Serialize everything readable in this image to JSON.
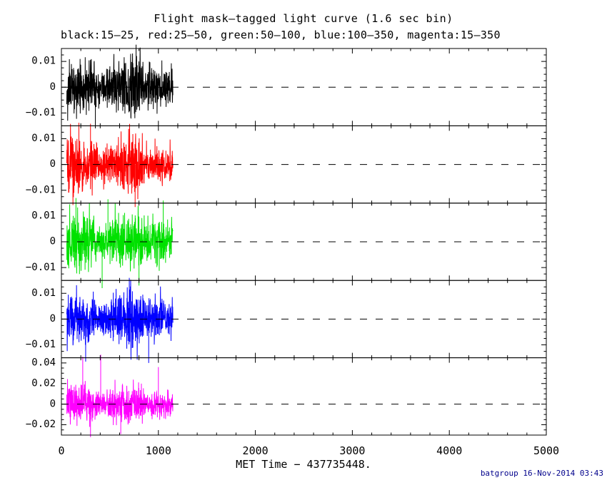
{
  "chart_data": {
    "type": "line",
    "title": "Flight mask–tagged light curve (1.6 sec bin)",
    "subtitle": "black:15–25, red:25–50, green:50–100, blue:100–350, magenta:15–350",
    "xlabel": "MET Time − 437735448.",
    "credit": "batgroup 16-Nov-2014 03:43",
    "credit_color": "#00008b",
    "axis_color": "#000000",
    "background_color": "#ffffff",
    "grid": false,
    "legend_position": "subtitle",
    "zero_line_style": "dashed",
    "xlim": [
      0,
      5000
    ],
    "xticks": [
      0,
      1000,
      2000,
      3000,
      4000,
      5000
    ],
    "xtick_labels": [
      "0",
      "1000",
      "2000",
      "3000",
      "4000",
      "5000"
    ],
    "x_minor_step": 200,
    "bin_seconds": 1.6,
    "data_x_extent": [
      55,
      1150
    ],
    "panels": [
      {
        "series": "black",
        "energy_band_kev": "15–25",
        "color": "#000000",
        "ylim": [
          -0.015,
          0.015
        ],
        "yticks": [
          0.01,
          0,
          -0.01
        ],
        "ytick_labels": [
          "0.01",
          "0",
          "−0.01"
        ],
        "y_minor_step": 0.0025,
        "noise_sigma": 0.0045,
        "seed": 11,
        "spikes": [
          [
            770,
            0.0165
          ],
          [
            350,
            -0.016
          ]
        ]
      },
      {
        "series": "red",
        "energy_band_kev": "25–50",
        "color": "#ff0000",
        "ylim": [
          -0.015,
          0.015
        ],
        "yticks": [
          0.01,
          0,
          -0.01
        ],
        "ytick_labels": [
          "0.01",
          "0",
          "−0.01"
        ],
        "y_minor_step": 0.0025,
        "noise_sigma": 0.0045,
        "seed": 22,
        "spikes": [
          [
            180,
            0.0162
          ],
          [
            300,
            0.0158
          ],
          [
            760,
            -0.0165
          ]
        ]
      },
      {
        "series": "green",
        "energy_band_kev": "50–100",
        "color": "#00e100",
        "ylim": [
          -0.015,
          0.015
        ],
        "yticks": [
          0.01,
          0,
          -0.01
        ],
        "ytick_labels": [
          "0.01",
          "0",
          "−0.01"
        ],
        "y_minor_step": 0.0025,
        "noise_sigma": 0.005,
        "seed": 33,
        "spikes": [
          [
            150,
            0.017
          ],
          [
            420,
            -0.018
          ],
          [
            480,
            0.0165
          ],
          [
            800,
            -0.017
          ],
          [
            1050,
            0.016
          ]
        ]
      },
      {
        "series": "blue",
        "energy_band_kev": "100–350",
        "color": "#0000ff",
        "ylim": [
          -0.015,
          0.015
        ],
        "yticks": [
          0.01,
          0,
          -0.01
        ],
        "ytick_labels": [
          "0.01",
          "0",
          "−0.01"
        ],
        "y_minor_step": 0.0025,
        "noise_sigma": 0.0045,
        "seed": 44,
        "spikes": [
          [
            250,
            -0.0165
          ],
          [
            700,
            0.016
          ],
          [
            900,
            -0.017
          ]
        ]
      },
      {
        "series": "magenta",
        "energy_band_kev": "15–350",
        "color": "#ff00ff",
        "ylim": [
          -0.03,
          0.045
        ],
        "yticks": [
          0.04,
          0.02,
          0,
          -0.02
        ],
        "ytick_labels": [
          "0.04",
          "0.02",
          "0",
          "−0.02"
        ],
        "y_minor_step": 0.005,
        "noise_sigma": 0.008,
        "seed": 55,
        "spikes": [
          [
            220,
            0.046
          ],
          [
            405,
            0.048
          ],
          [
            612,
            -0.029
          ],
          [
            300,
            -0.032
          ],
          [
            1000,
            0.036
          ]
        ]
      }
    ]
  }
}
